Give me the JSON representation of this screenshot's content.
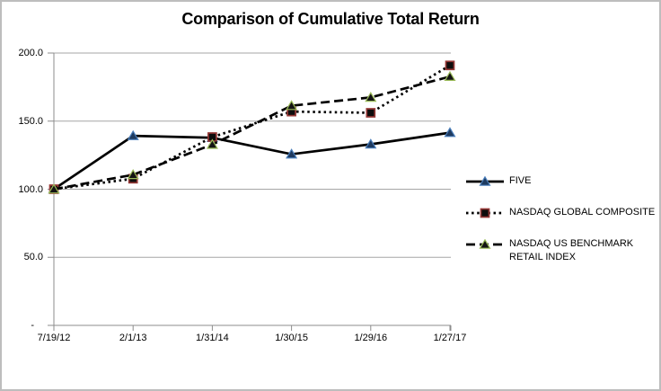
{
  "frame": {
    "background": "#ffffff",
    "border_color": "#bdbdbd"
  },
  "chart_data": {
    "type": "line",
    "title": "Comparison of Cumulative Total Return",
    "categories": [
      "7/19/12",
      "2/1/13",
      "1/31/14",
      "1/30/15",
      "1/29/16",
      "1/27/17"
    ],
    "series": [
      {
        "name": "FIVE",
        "values": [
          100.0,
          139.2,
          137.8,
          125.7,
          133.0,
          141.5
        ],
        "line_style": "solid",
        "line_color": "#000000",
        "marker": "triangle-up",
        "marker_fill": "#1e3a5f",
        "marker_stroke": "#4a7ebb"
      },
      {
        "name": "NASDAQ GLOBAL COMPOSITE",
        "values": [
          100.0,
          107.7,
          138.3,
          157.0,
          156.1,
          190.9
        ],
        "line_style": "dotted",
        "line_color": "#000000",
        "marker": "square",
        "marker_fill": "#0d0d0d",
        "marker_stroke": "#953735"
      },
      {
        "name": "NASDAQ US BENCHMARK RETAIL INDEX",
        "values": [
          100.0,
          110.6,
          132.8,
          161.3,
          167.4,
          182.7
        ],
        "line_style": "dashed",
        "line_color": "#000000",
        "marker": "triangle-up",
        "marker_fill": "#141414",
        "marker_stroke": "#9bbb59"
      }
    ],
    "xlabel": "",
    "ylabel": "",
    "ylim": [
      0,
      200
    ],
    "yticks": [
      {
        "value": 200,
        "label": "200.0"
      },
      {
        "value": 150,
        "label": "150.0"
      },
      {
        "value": 100,
        "label": "100.0"
      },
      {
        "value": 50,
        "label": "50.0"
      },
      {
        "value": 0,
        "label": "-"
      }
    ],
    "grid": "horizontal",
    "legend_position": "right",
    "colors": {
      "gridline": "#a6a6a6",
      "axis": "#8c8c8c",
      "text": "#000000"
    }
  }
}
